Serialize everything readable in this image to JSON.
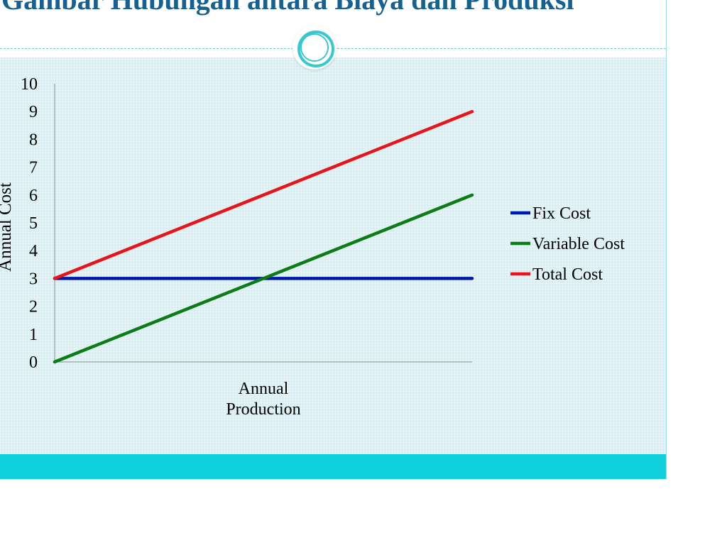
{
  "slide": {
    "title": "Gambar Hubungan antara Biaya dan Produksi"
  },
  "colors": {
    "title": "#17608f",
    "panel": "#d9eef2",
    "footer_band": "#0fd0db",
    "ornament": "#3cc6cf"
  },
  "chart_data": {
    "type": "line",
    "title": "",
    "xlabel": "Annual Production",
    "ylabel": "Annual Cost",
    "ylim": [
      0,
      10
    ],
    "yticks": [
      0,
      1,
      2,
      3,
      4,
      5,
      6,
      7,
      8,
      9,
      10
    ],
    "x": [
      0,
      1
    ],
    "xticks_shown": false,
    "grid": false,
    "legend_position": "right",
    "series": [
      {
        "name": "Fix Cost",
        "values": [
          3,
          3
        ],
        "color": "#0018a8"
      },
      {
        "name": "Variable Cost",
        "values": [
          0,
          6
        ],
        "color": "#0a7d16"
      },
      {
        "name": "Total Cost",
        "values": [
          3,
          9
        ],
        "color": "#e8141b"
      }
    ]
  }
}
